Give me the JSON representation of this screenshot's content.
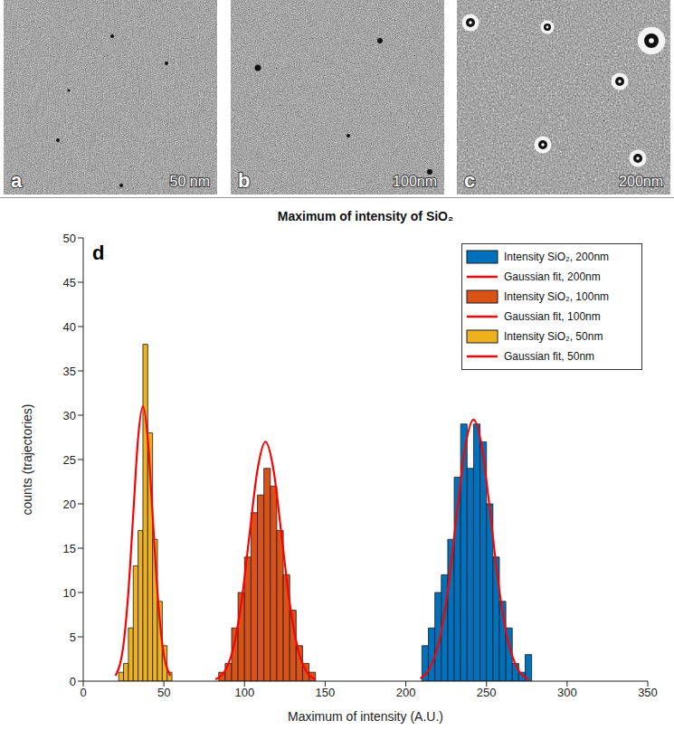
{
  "images": [
    {
      "panel": "a",
      "label": "50 nm"
    },
    {
      "panel": "b",
      "label": "100nm"
    },
    {
      "panel": "c",
      "label": "200nm"
    }
  ],
  "chart_data": {
    "type": "histogram",
    "panel_label": "d",
    "title": "Maximum of intensity of SiO₂",
    "x_label": "Maximum of intensity (A.U.)",
    "y_label": "counts (trajectories)",
    "xlim": [
      0,
      350
    ],
    "xticks": [
      0,
      50,
      100,
      150,
      200,
      250,
      300,
      350
    ],
    "ylim": [
      0,
      50
    ],
    "yticks": [
      0,
      5,
      10,
      15,
      20,
      25,
      30,
      35,
      40,
      45,
      50
    ],
    "legend": "upper right",
    "series": [
      {
        "name": "Intensity SiO₂, 200nm",
        "type": "histogram",
        "color": "#0072bd",
        "bins": [
          210,
          214,
          218,
          222,
          226,
          230,
          234,
          238,
          242,
          246,
          250,
          254,
          258,
          262,
          266,
          270,
          274,
          278
        ],
        "values": [
          4,
          6,
          10,
          12,
          16,
          23,
          29,
          24,
          29,
          27,
          20,
          14,
          9,
          6,
          2,
          1,
          3
        ]
      },
      {
        "name": "Gaussian fit, 200nm",
        "type": "line",
        "color": "#ff0000",
        "x": [
          209,
          215,
          221,
          227,
          232,
          237,
          242,
          247,
          252,
          257,
          263,
          269,
          276
        ],
        "values": [
          0.3,
          1.5,
          4.8,
          11.6,
          19.5,
          26.6,
          29.5,
          26.6,
          19.5,
          11.6,
          4.8,
          1.5,
          0.2
        ]
      },
      {
        "name": "Intensity SiO₂, 100nm",
        "type": "histogram",
        "color": "#d95319",
        "bins": [
          84,
          88,
          92,
          96,
          100,
          104,
          108,
          112,
          116,
          120,
          124,
          128,
          132,
          136,
          140,
          144
        ],
        "values": [
          1,
          2,
          6,
          10,
          14,
          19,
          21,
          24,
          22,
          17,
          12,
          8,
          4,
          2,
          1
        ]
      },
      {
        "name": "Gaussian fit, 100nm",
        "type": "line",
        "color": "#ff0000",
        "x": [
          82,
          88,
          93,
          98,
          103,
          108,
          113,
          118,
          123,
          128,
          133,
          138,
          144
        ],
        "values": [
          0.2,
          1.2,
          3.7,
          8.8,
          16.4,
          23.8,
          27,
          23.8,
          16.4,
          8.8,
          3.7,
          1.2,
          0.2
        ]
      },
      {
        "name": "Intensity SiO₂, 50nm",
        "type": "histogram",
        "color": "#edb120",
        "bins": [
          22,
          25,
          28,
          31,
          34,
          37,
          40,
          43,
          46,
          49,
          52,
          55
        ],
        "values": [
          1,
          2,
          6,
          13,
          17,
          38,
          28,
          16,
          9,
          4,
          1
        ]
      },
      {
        "name": "Gaussian fit, 50nm",
        "type": "line",
        "color": "#ff0000",
        "x": [
          20,
          25,
          28,
          31,
          34,
          37,
          40,
          43,
          46,
          49,
          54
        ],
        "values": [
          0.6,
          4.2,
          10.1,
          18.8,
          27.4,
          31,
          27.4,
          18.8,
          10.1,
          4.2,
          0.6
        ]
      }
    ]
  }
}
